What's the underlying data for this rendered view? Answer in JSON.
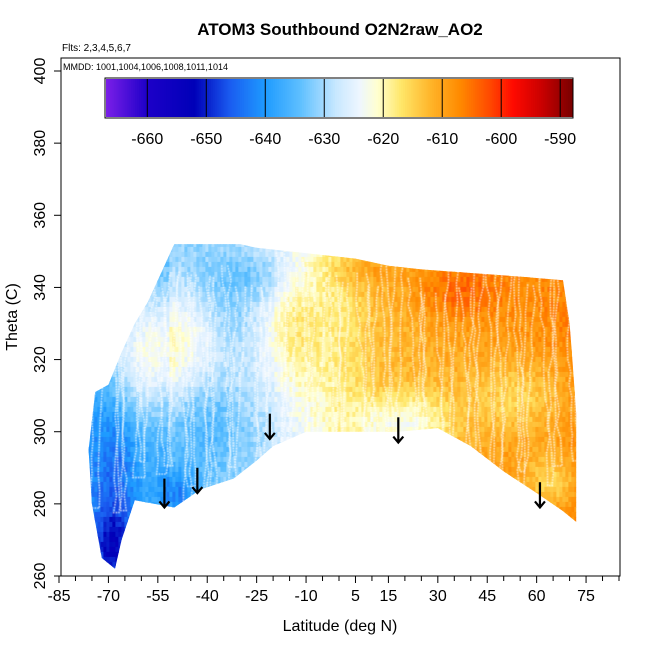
{
  "chart_data": {
    "type": "heatmap",
    "title": "ATOM3 Southbound O2N2raw_AO2",
    "subtitle_flights": "Flts: 2,3,4,5,6,7",
    "subtitle_dates": "MMDD: 1001,1004,1006,1008,1011,1014",
    "xlabel": "Latitude (deg N)",
    "ylabel": "Theta (C)",
    "xlim": [
      -85,
      85
    ],
    "ylim": [
      260,
      400
    ],
    "x_tick_labels": [
      "-85",
      "-70",
      "-55",
      "-40",
      "-25",
      "-10",
      "5",
      "15",
      "30",
      "45",
      "60",
      "75"
    ],
    "x_tick_values": [
      -85,
      -70,
      -55,
      -40,
      -25,
      -10,
      5,
      15,
      30,
      45,
      60,
      75
    ],
    "x_minor_ticks": [
      -80,
      -75,
      -65,
      -60,
      -50,
      -45,
      -35,
      -30,
      -20,
      -15,
      -5,
      0,
      10,
      20,
      25,
      35,
      40,
      50,
      55,
      65,
      70,
      80,
      85
    ],
    "y_ticks": [
      260,
      280,
      300,
      320,
      340,
      360,
      380,
      400
    ],
    "colorbar": {
      "range": [
        -667,
        -588
      ],
      "tick_values": [
        -660,
        -650,
        -640,
        -630,
        -620,
        -610,
        -600,
        -590
      ],
      "tick_labels": [
        "-660",
        "-650",
        "-640",
        "-630",
        "-620",
        "-610",
        "-600",
        "-590"
      ],
      "stops": [
        [
          -667,
          "#7b1fe8"
        ],
        [
          -660,
          "#1d00c8"
        ],
        [
          -652,
          "#0000b8"
        ],
        [
          -646,
          "#1a5cf0"
        ],
        [
          -640,
          "#1e9bff"
        ],
        [
          -634,
          "#5fc0ff"
        ],
        [
          -628,
          "#c8e8ff"
        ],
        [
          -624,
          "#eef6ff"
        ],
        [
          -621,
          "#ffffd0"
        ],
        [
          -617,
          "#ffe76a"
        ],
        [
          -612,
          "#ffb52a"
        ],
        [
          -607,
          "#ff8a00"
        ],
        [
          -602,
          "#ff4a00"
        ],
        [
          -598,
          "#ff0a00"
        ],
        [
          -593,
          "#c80000"
        ],
        [
          -588,
          "#7a0000"
        ]
      ]
    },
    "domain_top_theta": [
      [
        -74,
        311
      ],
      [
        -70,
        313
      ],
      [
        -66,
        322
      ],
      [
        -62,
        330
      ],
      [
        -58,
        336
      ],
      [
        -55,
        342
      ],
      [
        -50,
        352
      ],
      [
        -30,
        352
      ],
      [
        -25,
        351
      ],
      [
        -15,
        350
      ],
      [
        -5,
        349
      ],
      [
        5,
        348
      ],
      [
        15,
        346
      ],
      [
        25,
        345
      ],
      [
        40,
        344
      ],
      [
        55,
        343
      ],
      [
        68,
        342
      ],
      [
        70,
        330
      ],
      [
        71,
        318
      ],
      [
        72,
        305
      ]
    ],
    "domain_bottom_theta": [
      [
        72,
        275
      ],
      [
        68,
        278
      ],
      [
        60,
        283
      ],
      [
        50,
        289
      ],
      [
        40,
        296
      ],
      [
        30,
        301
      ],
      [
        18,
        300
      ],
      [
        5,
        300
      ],
      [
        -10,
        300
      ],
      [
        -20,
        296
      ],
      [
        -25,
        292
      ],
      [
        -32,
        287
      ],
      [
        -42,
        284
      ],
      [
        -50,
        279
      ],
      [
        -56,
        280
      ],
      [
        -62,
        281
      ],
      [
        -66,
        270
      ],
      [
        -68,
        262
      ],
      [
        -72,
        265
      ],
      [
        -75,
        280
      ],
      [
        -76,
        295
      ]
    ],
    "flight_profile_latitudes": [
      -73,
      -69,
      -66,
      -62,
      -59,
      -56,
      -52,
      -49,
      -45,
      -42,
      -39,
      -35,
      -31,
      -27,
      -23,
      -19,
      -15,
      -11,
      -7,
      -3,
      1,
      5,
      9,
      13,
      17,
      21,
      25,
      29,
      33,
      37,
      41,
      45,
      49,
      53,
      57,
      61,
      65,
      69
    ],
    "arrows": [
      {
        "lat": -53,
        "theta_start": 287,
        "theta_end": 279
      },
      {
        "lat": -43,
        "theta_start": 290,
        "theta_end": 283
      },
      {
        "lat": -21,
        "theta_start": 305,
        "theta_end": 298
      },
      {
        "lat": 18,
        "theta_start": 304,
        "theta_end": 297
      },
      {
        "lat": 61,
        "theta_start": 286,
        "theta_end": 279
      }
    ]
  }
}
